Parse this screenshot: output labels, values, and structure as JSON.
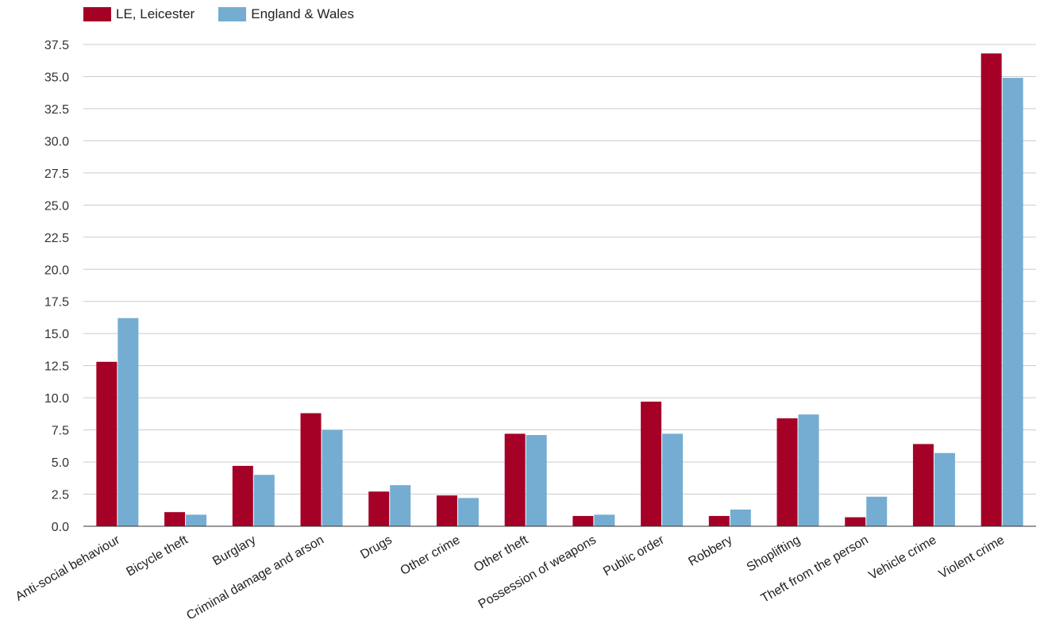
{
  "colors": {
    "series0": "#a50026",
    "series1": "#74add1",
    "grid": "#cccccc",
    "axis": "#333333"
  },
  "chart_data": {
    "type": "bar",
    "categories": [
      "Anti-social behaviour",
      "Bicycle theft",
      "Burglary",
      "Criminal damage and arson",
      "Drugs",
      "Other crime",
      "Other theft",
      "Possession of weapons",
      "Public order",
      "Robbery",
      "Shoplifting",
      "Theft from the person",
      "Vehicle crime",
      "Violent crime"
    ],
    "series": [
      {
        "name": "LE, Leicester",
        "values": [
          12.8,
          1.1,
          4.7,
          8.8,
          2.7,
          2.4,
          7.2,
          0.8,
          9.7,
          0.8,
          8.4,
          0.7,
          6.4,
          36.8
        ]
      },
      {
        "name": "England & Wales",
        "values": [
          16.2,
          0.9,
          4.0,
          7.5,
          3.2,
          2.2,
          7.1,
          0.9,
          7.2,
          1.3,
          8.7,
          2.3,
          5.7,
          34.9
        ]
      }
    ],
    "yticks": [
      "0.0",
      "2.5",
      "5.0",
      "7.5",
      "10.0",
      "12.5",
      "15.0",
      "17.5",
      "20.0",
      "22.5",
      "25.0",
      "27.5",
      "30.0",
      "32.5",
      "35.0",
      "37.5"
    ],
    "ylim": [
      0,
      37.5
    ],
    "grid": true,
    "legend_position": "top-left"
  }
}
